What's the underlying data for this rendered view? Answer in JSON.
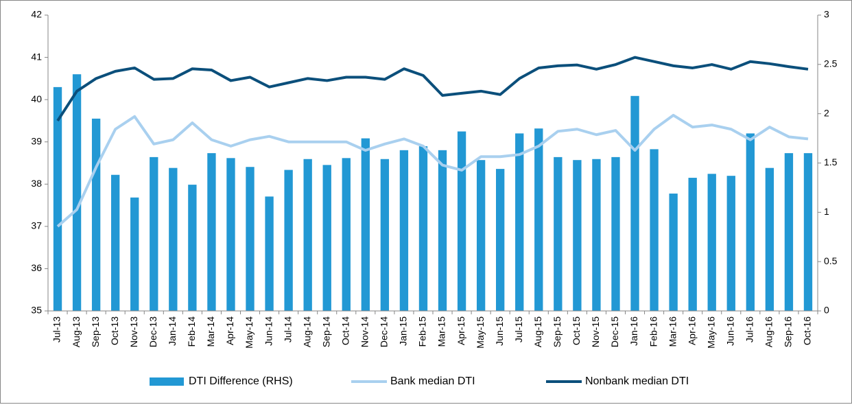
{
  "chart_data": {
    "type": "bar_line",
    "categories": [
      "Jul-13",
      "Aug-13",
      "Sep-13",
      "Oct-13",
      "Nov-13",
      "Dec-13",
      "Jan-14",
      "Feb-14",
      "Mar-14",
      "Apr-14",
      "May-14",
      "Jun-14",
      "Jul-14",
      "Aug-14",
      "Sep-14",
      "Oct-14",
      "Nov-14",
      "Dec-14",
      "Jan-15",
      "Feb-15",
      "Mar-15",
      "Apr-15",
      "May-15",
      "Jun-15",
      "Jul-15",
      "Aug-15",
      "Sep-15",
      "Oct-15",
      "Nov-15",
      "Dec-15",
      "Jan-16",
      "Feb-16",
      "Mar-16",
      "Apr-16",
      "May-16",
      "Jun-16",
      "Jul-16",
      "Aug-16",
      "Sep-16",
      "Oct-16"
    ],
    "series": [
      {
        "name": "DTI Difference (RHS)",
        "color": "#2298d4",
        "type": "bar",
        "axis": "y2",
        "values": [
          2.27,
          2.4,
          1.95,
          1.38,
          1.15,
          1.56,
          1.45,
          1.28,
          1.6,
          1.55,
          1.46,
          1.16,
          1.43,
          1.54,
          1.48,
          1.55,
          1.75,
          1.54,
          1.63,
          1.67,
          1.63,
          1.82,
          1.53,
          1.44,
          1.8,
          1.85,
          1.56,
          1.53,
          1.54,
          1.56,
          2.18,
          1.64,
          1.19,
          1.35,
          1.39,
          1.37,
          1.8,
          1.45,
          1.6,
          1.6
        ]
      },
      {
        "name": "Bank median DTI",
        "color": "#a9d0ef",
        "type": "line",
        "values": [
          37.0,
          37.4,
          38.4,
          39.3,
          39.6,
          38.95,
          39.05,
          39.45,
          39.05,
          38.9,
          39.05,
          39.13,
          39.0,
          39.0,
          39.0,
          39.0,
          38.8,
          38.95,
          39.07,
          38.9,
          38.45,
          38.33,
          38.65,
          38.65,
          38.7,
          38.9,
          39.25,
          39.3,
          39.17,
          39.27,
          38.8,
          39.3,
          39.63,
          39.35,
          39.4,
          39.3,
          39.05,
          39.35,
          39.12,
          39.07
        ]
      },
      {
        "name": "Nonbank median DTI",
        "color": "#0b4f7b",
        "type": "line",
        "values": [
          39.5,
          40.2,
          40.5,
          40.67,
          40.75,
          40.48,
          40.5,
          40.73,
          40.7,
          40.45,
          40.53,
          40.3,
          40.4,
          40.5,
          40.45,
          40.53,
          40.53,
          40.48,
          40.73,
          40.57,
          40.1,
          40.15,
          40.2,
          40.12,
          40.5,
          40.75,
          40.8,
          40.82,
          40.72,
          40.83,
          41.0,
          40.9,
          40.8,
          40.75,
          40.83,
          40.72,
          40.9,
          40.85,
          40.78,
          40.72
        ]
      }
    ],
    "ylim": [
      35,
      42
    ],
    "yticks": [
      35,
      36,
      37,
      38,
      39,
      40,
      41,
      42
    ],
    "y2lim": [
      0,
      3
    ],
    "y2ticks": [
      0,
      0.5,
      1,
      1.5,
      2,
      2.5,
      3
    ],
    "grid": false,
    "legend": "bottom"
  }
}
